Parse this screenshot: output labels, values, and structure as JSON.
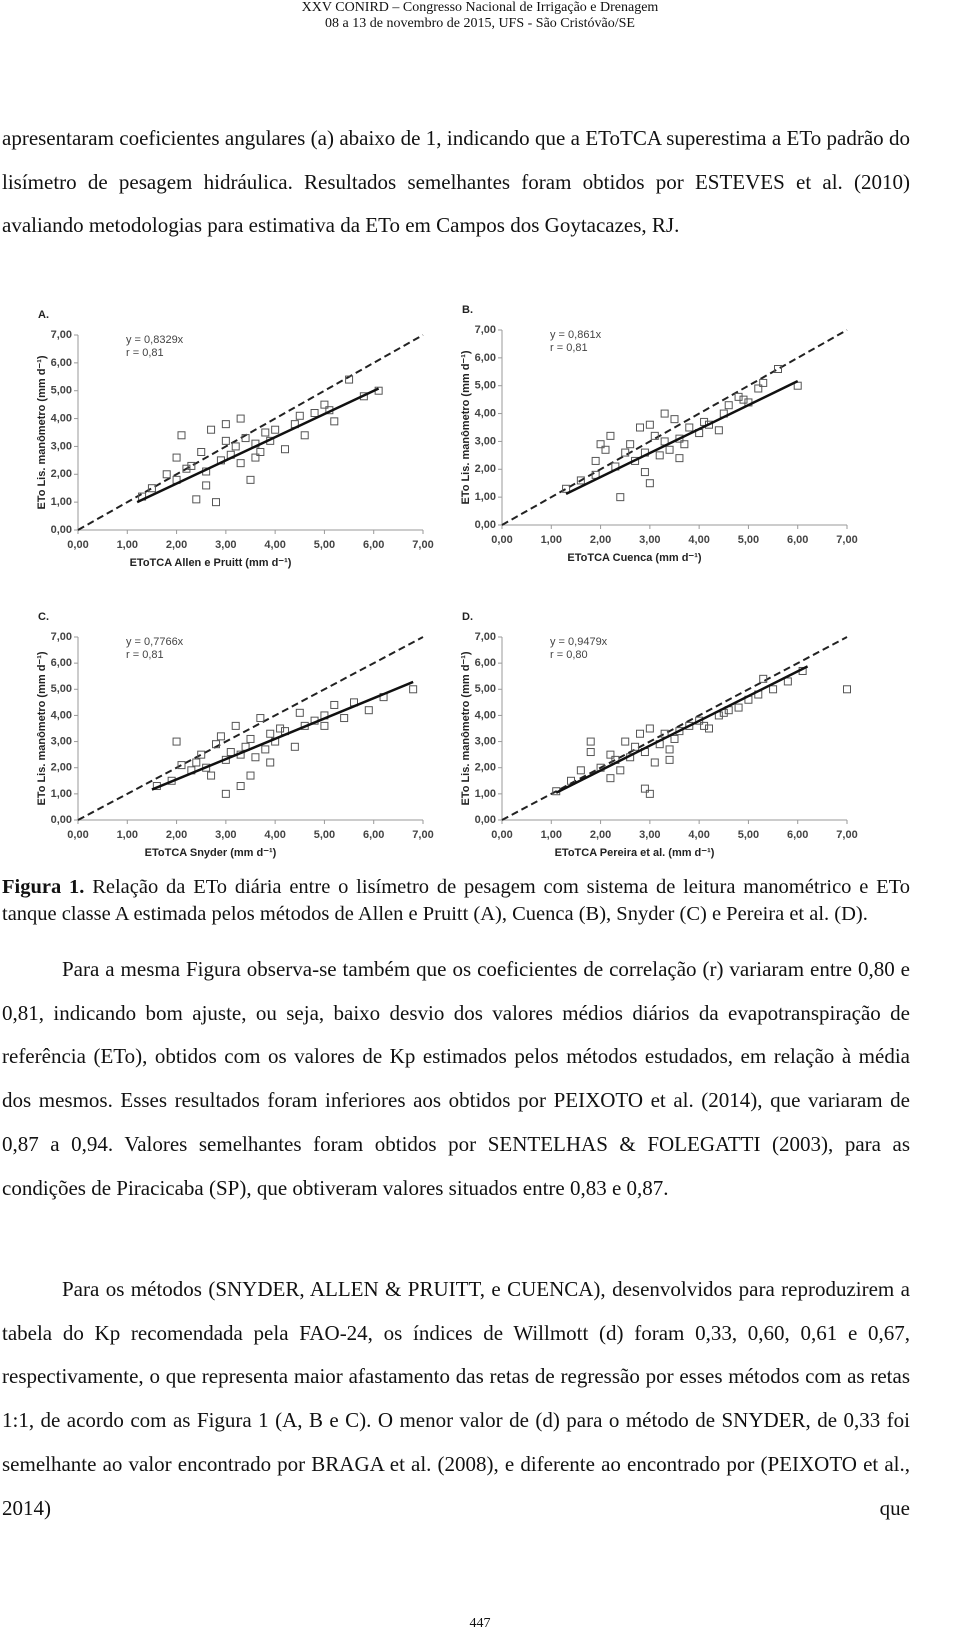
{
  "header": {
    "line1": "XXV CONIRD – Congresso Nacional de Irrigação e Drenagem",
    "line2": "08 a 13 de novembro de 2015, UFS - São Cristóvão/SE"
  },
  "paragraphs": [
    "apresentaram coeficientes angulares (a) abaixo de 1, indicando que a EToTCA superestima a ETo padrão do lisímetro de pesagem hidráulica. Resultados semelhantes foram obtidos por ESTEVES et al. (2010) avaliando metodologias para estimativa da ETo em Campos dos Goytacazes, RJ.",
    "Para a mesma Figura observa-se também que os coeficientes de correlação (r) variaram entre 0,80 e 0,81, indicando bom ajuste, ou seja, baixo desvio dos valores médios diários da evapotranspiração de referência (ETo), obtidos com os valores de Kp estimados pelos métodos estudados, em relação à média dos mesmos. Esses resultados foram inferiores aos obtidos por PEIXOTO et al. (2014), que variaram de 0,87 a 0,94. Valores semelhantes foram obtidos por SENTELHAS & FOLEGATTI (2003), para as condições de Piracicaba (SP), que obtiveram valores situados entre 0,83 e 0,87.",
    "Para os métodos (SNYDER, ALLEN & PRUITT, e CUENCA), desenvolvidos para reproduzirem a tabela do Kp recomendada pela FAO-24, os índices de Willmott (d) foram 0,33, 0,60, 0,61 e 0,67, respectivamente, o que representa maior afastamento das retas de regressão por esses métodos com as retas 1:1, de acordo com as Figura 1 (A, B e C). O menor valor de (d) para o método de SNYDER, de 0,33 foi semelhante ao valor encontrado por BRAGA et al. (2008), e diferente ao encontrado por (PEIXOTO et al., 2014) que"
  ],
  "caption": {
    "label": "Figura 1.",
    "text": "Relação da ETo diária entre o lisímetro de pesagem com sistema de leitura manométrico e ETo tanque classe A estimada pelos métodos de Allen e Pruitt (A), Cuenca (B), Snyder (C) e Pereira et al. (D)."
  },
  "page_number": "447",
  "chart_data": [
    {
      "type": "scatter",
      "panel": "A.",
      "equation": "y = 0,8329x",
      "r_label": "r = 0,81",
      "xlabel": "EToTCA Allen e Pruitt  (mm d⁻¹)",
      "ylabel": "ETo Lis. manômetro (mm d⁻¹)",
      "xlim": [
        0,
        7
      ],
      "ylim": [
        0,
        7
      ],
      "xticks": [
        {
          "value": 0,
          "label": "0,00"
        },
        {
          "value": 1,
          "label": "1,00"
        },
        {
          "value": 2,
          "label": "2,00"
        },
        {
          "value": 3,
          "label": "3,00"
        },
        {
          "value": 4,
          "label": "4,00"
        },
        {
          "value": 5,
          "label": "5,00"
        },
        {
          "value": 6,
          "label": "6,00"
        },
        {
          "value": 7,
          "label": "7,00"
        }
      ],
      "yticks": [
        {
          "value": 0,
          "label": "0,00"
        },
        {
          "value": 1,
          "label": "1,00"
        },
        {
          "value": 2,
          "label": "2,00"
        },
        {
          "value": 3,
          "label": "3,00"
        },
        {
          "value": 4,
          "label": "4,00"
        },
        {
          "value": 5,
          "label": "5,00"
        },
        {
          "value": 6,
          "label": "6,00"
        },
        {
          "value": 7,
          "label": "7,00"
        }
      ],
      "x": [
        1.3,
        1.5,
        1.8,
        2.0,
        2.1,
        2.3,
        2.4,
        2.5,
        2.6,
        2.7,
        2.8,
        2.9,
        3.0,
        3.1,
        3.2,
        3.3,
        3.4,
        3.5,
        3.6,
        3.7,
        3.8,
        3.9,
        4.0,
        4.2,
        4.4,
        4.6,
        4.8,
        5.0,
        5.2,
        5.5,
        5.8,
        6.1,
        2.0,
        2.6,
        3.3,
        2.2,
        4.5,
        3.0,
        3.6,
        5.1
      ],
      "y": [
        1.2,
        1.5,
        2.0,
        1.8,
        3.4,
        2.3,
        1.1,
        2.8,
        2.1,
        3.6,
        1.0,
        2.5,
        3.8,
        2.7,
        3.0,
        2.4,
        3.3,
        1.8,
        3.1,
        2.8,
        3.5,
        3.2,
        3.6,
        2.9,
        3.8,
        3.4,
        4.2,
        4.5,
        3.9,
        5.4,
        4.8,
        5.0,
        2.6,
        1.6,
        4.0,
        2.2,
        4.1,
        3.2,
        2.6,
        4.3
      ],
      "fit": {
        "slope": 0.8329,
        "x": [
          1.2,
          6.1
        ]
      }
    },
    {
      "type": "scatter",
      "panel": "B.",
      "equation": "y = 0,861x",
      "r_label": "r = 0,81",
      "xlabel": "EToTCA  Cuenca  (mm d⁻¹)",
      "ylabel": "ETo Lis. manômetro (mm d⁻¹)",
      "xlim": [
        0,
        7
      ],
      "ylim": [
        0,
        7
      ],
      "xticks": [
        {
          "value": 0,
          "label": "0,00"
        },
        {
          "value": 1,
          "label": "1,00"
        },
        {
          "value": 2,
          "label": "2,00"
        },
        {
          "value": 3,
          "label": "3,00"
        },
        {
          "value": 4,
          "label": "4,00"
        },
        {
          "value": 5,
          "label": "5,00"
        },
        {
          "value": 6,
          "label": "6,00"
        },
        {
          "value": 7,
          "label": "7,00"
        }
      ],
      "yticks": [
        {
          "value": 0,
          "label": "0,00"
        },
        {
          "value": 1,
          "label": "1,00"
        },
        {
          "value": 2,
          "label": "2,00"
        },
        {
          "value": 3,
          "label": "3,00"
        },
        {
          "value": 4,
          "label": "4,00"
        },
        {
          "value": 5,
          "label": "5,00"
        },
        {
          "value": 6,
          "label": "6,00"
        },
        {
          "value": 7,
          "label": "7,00"
        }
      ],
      "x": [
        1.3,
        1.6,
        1.9,
        2.1,
        2.3,
        2.4,
        2.6,
        2.7,
        2.8,
        2.9,
        3.0,
        3.1,
        3.2,
        3.3,
        3.4,
        3.5,
        3.6,
        3.7,
        3.8,
        4.0,
        4.2,
        4.4,
        4.6,
        4.8,
        5.0,
        5.3,
        5.6,
        6.0,
        1.9,
        2.2,
        2.9,
        3.3,
        3.6,
        4.1,
        2.5,
        4.5,
        5.2,
        3.0,
        2.0,
        4.9
      ],
      "y": [
        1.3,
        1.6,
        2.3,
        2.7,
        2.1,
        1.0,
        2.9,
        2.3,
        3.5,
        2.6,
        1.5,
        3.2,
        2.5,
        3.0,
        2.7,
        3.8,
        3.1,
        2.9,
        3.5,
        3.3,
        3.6,
        3.4,
        4.3,
        4.6,
        4.4,
        5.1,
        5.6,
        5.0,
        1.8,
        3.2,
        1.9,
        4.0,
        2.4,
        3.7,
        2.6,
        4.0,
        4.9,
        3.6,
        2.9,
        4.5
      ],
      "fit": {
        "slope": 0.861,
        "x": [
          1.3,
          6.0
        ]
      }
    },
    {
      "type": "scatter",
      "panel": "C.",
      "equation": "y = 0,7766x",
      "r_label": "r = 0,81",
      "xlabel": "EToTCA Snyder (mm d⁻¹)",
      "ylabel": "ETo Lis. manômetro (mm d⁻¹)",
      "xlim": [
        0,
        7
      ],
      "ylim": [
        0,
        7
      ],
      "xticks": [
        {
          "value": 0,
          "label": "0,00"
        },
        {
          "value": 1,
          "label": "1,00"
        },
        {
          "value": 2,
          "label": "2,00"
        },
        {
          "value": 3,
          "label": "3,00"
        },
        {
          "value": 4,
          "label": "4,00"
        },
        {
          "value": 5,
          "label": "5,00"
        },
        {
          "value": 6,
          "label": "6,00"
        },
        {
          "value": 7,
          "label": "7,00"
        }
      ],
      "yticks": [
        {
          "value": 0,
          "label": "0,00"
        },
        {
          "value": 1,
          "label": "1,00"
        },
        {
          "value": 2,
          "label": "2,00"
        },
        {
          "value": 3,
          "label": "3,00"
        },
        {
          "value": 4,
          "label": "4,00"
        },
        {
          "value": 5,
          "label": "5,00"
        },
        {
          "value": 6,
          "label": "6,00"
        },
        {
          "value": 7,
          "label": "7,00"
        }
      ],
      "x": [
        1.6,
        1.9,
        2.1,
        2.3,
        2.5,
        2.7,
        2.8,
        2.9,
        3.0,
        3.1,
        3.2,
        3.3,
        3.4,
        3.5,
        3.6,
        3.7,
        3.8,
        3.9,
        4.0,
        4.2,
        4.4,
        4.6,
        4.8,
        5.0,
        5.2,
        5.4,
        5.6,
        5.9,
        6.2,
        6.8,
        2.0,
        2.4,
        3.0,
        3.5,
        4.1,
        4.5,
        2.6,
        3.3,
        3.9,
        5.0
      ],
      "y": [
        1.3,
        1.5,
        2.1,
        1.9,
        2.5,
        1.7,
        2.9,
        3.2,
        2.3,
        2.6,
        3.6,
        1.3,
        2.8,
        3.1,
        2.4,
        3.9,
        2.7,
        3.3,
        3.0,
        3.4,
        2.8,
        3.6,
        3.8,
        4.0,
        4.4,
        3.9,
        4.5,
        4.2,
        4.7,
        5.0,
        3.0,
        2.2,
        1.0,
        1.7,
        3.5,
        4.1,
        2.0,
        2.5,
        2.2,
        3.6
      ],
      "fit": {
        "slope": 0.7766,
        "x": [
          1.5,
          6.8
        ]
      }
    },
    {
      "type": "scatter",
      "panel": "D.",
      "equation": "y = 0,9479x",
      "r_label": "r = 0,80",
      "xlabel": "EToTCA Pereira et al. (mm d⁻¹)",
      "ylabel": "ETo Lis. manômetro (mm d⁻¹)",
      "xlim": [
        0,
        7
      ],
      "ylim": [
        0,
        7
      ],
      "xticks": [
        {
          "value": 0,
          "label": "0,00"
        },
        {
          "value": 1,
          "label": "1,00"
        },
        {
          "value": 2,
          "label": "2,00"
        },
        {
          "value": 3,
          "label": "3,00"
        },
        {
          "value": 4,
          "label": "4,00"
        },
        {
          "value": 5,
          "label": "5,00"
        },
        {
          "value": 6,
          "label": "6,00"
        },
        {
          "value": 7,
          "label": "7,00"
        }
      ],
      "yticks": [
        {
          "value": 0,
          "label": "0,00"
        },
        {
          "value": 1,
          "label": "1,00"
        },
        {
          "value": 2,
          "label": "2,00"
        },
        {
          "value": 3,
          "label": "3,00"
        },
        {
          "value": 4,
          "label": "4,00"
        },
        {
          "value": 5,
          "label": "5,00"
        },
        {
          "value": 6,
          "label": "6,00"
        },
        {
          "value": 7,
          "label": "7,00"
        }
      ],
      "x": [
        1.1,
        1.4,
        1.6,
        1.8,
        2.0,
        2.2,
        2.3,
        2.5,
        2.6,
        2.7,
        2.8,
        2.9,
        3.0,
        3.1,
        3.2,
        3.3,
        3.4,
        3.5,
        3.6,
        3.8,
        4.0,
        4.2,
        4.4,
        4.6,
        4.8,
        5.0,
        5.2,
        5.5,
        5.8,
        6.1,
        7.0,
        1.8,
        2.4,
        2.9,
        3.4,
        4.1,
        3.0,
        2.2,
        4.5,
        5.3
      ],
      "y": [
        1.1,
        1.5,
        1.9,
        2.6,
        2.0,
        1.6,
        2.3,
        3.0,
        2.4,
        2.8,
        3.3,
        2.6,
        3.5,
        2.2,
        2.9,
        3.3,
        2.7,
        3.1,
        3.4,
        3.6,
        3.8,
        3.5,
        4.0,
        4.2,
        4.3,
        4.6,
        4.8,
        5.0,
        5.3,
        5.7,
        5.0,
        3.0,
        1.9,
        1.2,
        2.3,
        3.6,
        1.0,
        2.5,
        4.1,
        5.4
      ],
      "fit": {
        "slope": 0.9479,
        "x": [
          1.1,
          6.2
        ]
      }
    }
  ]
}
